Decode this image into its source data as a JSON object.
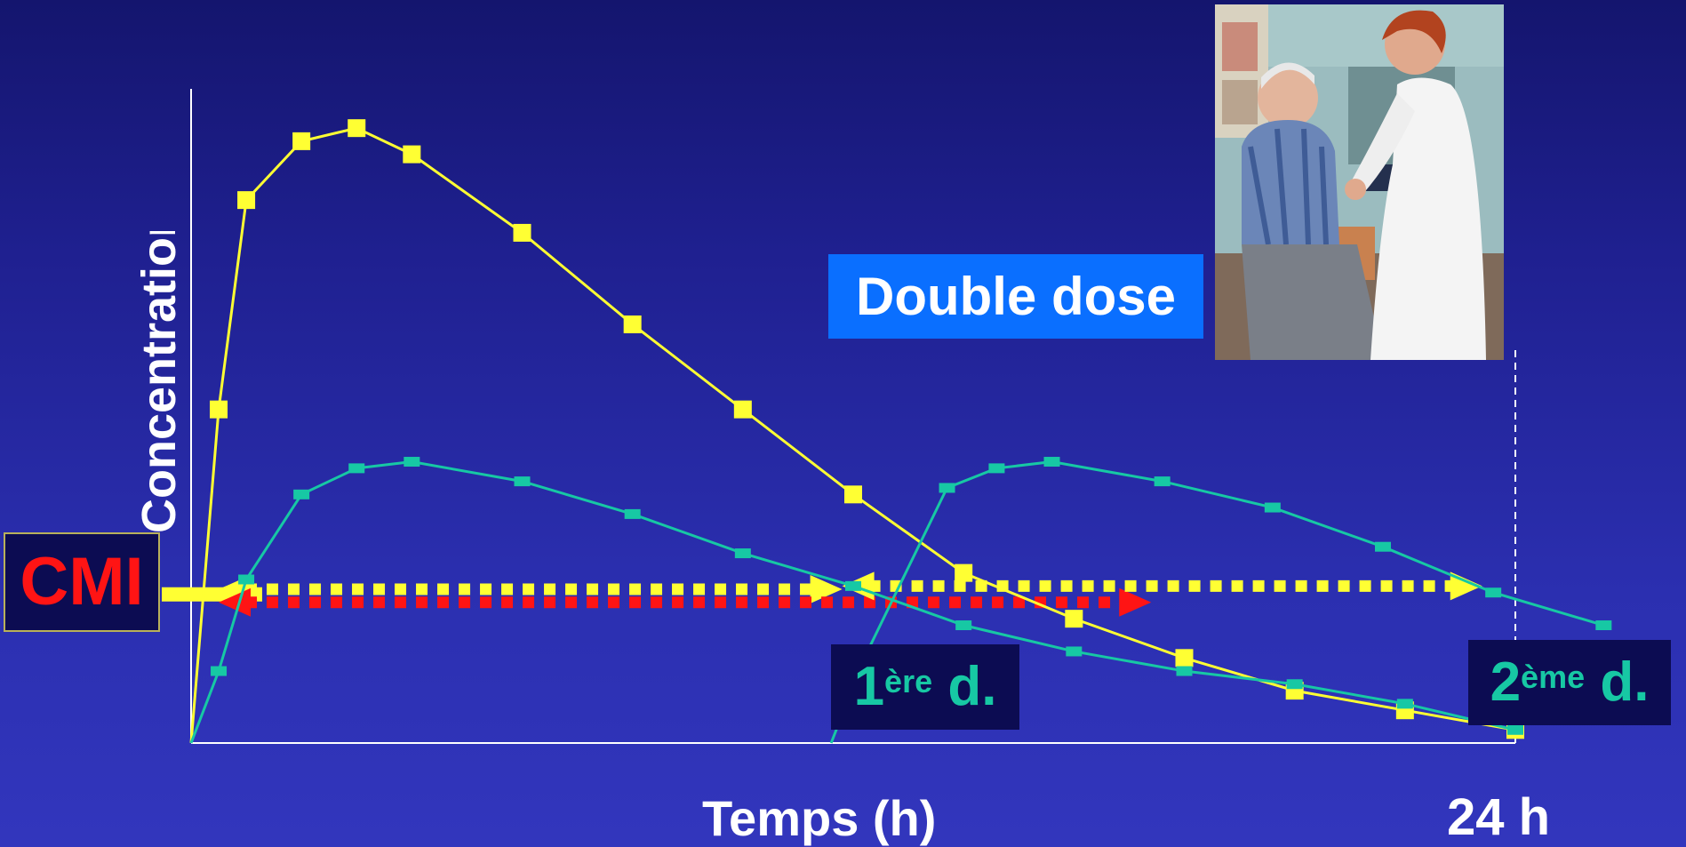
{
  "labels": {
    "y_axis": "Concentration",
    "x_axis": "Temps (h)",
    "end_tick": "24 h",
    "cmi": "CMI",
    "double_dose": "Double dose",
    "dose1_num": "1",
    "dose1_sup": "ère",
    "dose1_suffix": " d.",
    "dose2_num": "2",
    "dose2_sup": "ème",
    "dose2_suffix": " d."
  },
  "colors": {
    "double_dose_curve": "#ffff33",
    "single_dose_curve": "#17c8a4",
    "cmi_red": "#ff1414",
    "double_dose_box": "#0a6fff"
  },
  "chart_data": {
    "type": "line",
    "xlabel": "Temps (h)",
    "ylabel": "Concentration",
    "xlim": [
      0,
      24
    ],
    "ylim": [
      0,
      10
    ],
    "x_tick_labels": [
      "24 h"
    ],
    "cmi_level": 2.3,
    "series": [
      {
        "name": "Double dose",
        "color": "#ffff33",
        "x": [
          0,
          0.5,
          1,
          2,
          3,
          4,
          6,
          8,
          10,
          12,
          14,
          16,
          18,
          20,
          22,
          24
        ],
        "y": [
          0,
          5.1,
          8.3,
          9.2,
          9.4,
          9.0,
          7.8,
          6.4,
          5.1,
          3.8,
          2.6,
          1.9,
          1.3,
          0.8,
          0.5,
          0.2
        ]
      },
      {
        "name": "1ère d.",
        "color": "#17c8a4",
        "x": [
          0,
          0.5,
          1,
          2,
          3,
          4,
          6,
          8,
          10,
          12,
          14,
          16,
          18,
          20,
          22,
          24
        ],
        "y": [
          0,
          1.1,
          2.5,
          3.8,
          4.2,
          4.3,
          4.0,
          3.5,
          2.9,
          2.4,
          1.8,
          1.4,
          1.1,
          0.9,
          0.6,
          0.2
        ]
      },
      {
        "name": "2ème d.",
        "color": "#17c8a4",
        "x": [
          11.6,
          12.2,
          13.7,
          14.6,
          15.6,
          17.6,
          19.6,
          21.6,
          23.6,
          25.6
        ],
        "y": [
          0,
          1.3,
          3.9,
          4.2,
          4.3,
          4.0,
          3.6,
          3.0,
          2.3,
          1.8
        ]
      }
    ],
    "annotations": [
      {
        "type": "arrow",
        "style": "dotted",
        "color": "#ffff33",
        "from": [
          0.5,
          2.35
        ],
        "to": [
          11.8,
          2.35
        ]
      },
      {
        "type": "arrow",
        "style": "dotted",
        "color": "#ff1414",
        "from": [
          0.5,
          2.15
        ],
        "to": [
          17.4,
          2.15
        ]
      },
      {
        "type": "arrow",
        "style": "dotted",
        "color": "#ffff33",
        "from": [
          11.8,
          2.4
        ],
        "to": [
          23.4,
          2.4
        ]
      }
    ]
  },
  "photo": {
    "name": "patient-blood-pressure-photo"
  }
}
